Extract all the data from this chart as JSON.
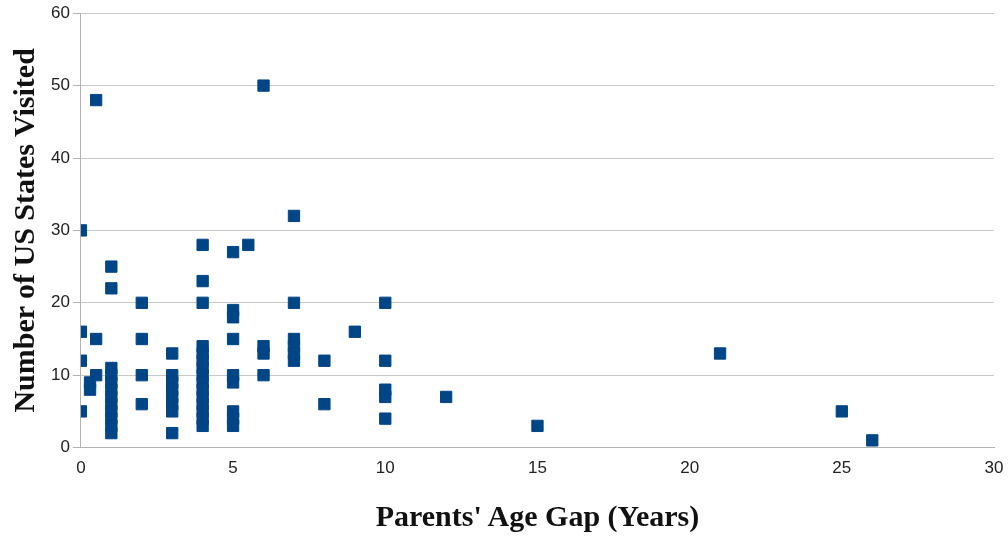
{
  "chart_data": {
    "type": "scatter",
    "xlabel": "Parents' Age Gap (Years)",
    "ylabel": "Number of US States Visited",
    "x": [
      0,
      0,
      0,
      0,
      0.5,
      0.5,
      0.5,
      0.3,
      0.3,
      1,
      1,
      1,
      1,
      1,
      1,
      1,
      1,
      1,
      1,
      1,
      1,
      2,
      2,
      2,
      2,
      3,
      3,
      3,
      3,
      3,
      3,
      3,
      3,
      4,
      4,
      4,
      4,
      4,
      4,
      4,
      4,
      4,
      4,
      4,
      4,
      4,
      4,
      4,
      5,
      5,
      5,
      5,
      5,
      5,
      5,
      5,
      5,
      5.5,
      6,
      6,
      6,
      6,
      7,
      7,
      7,
      7,
      7,
      7,
      8,
      8,
      9,
      10,
      10,
      10,
      10,
      10,
      12,
      15,
      21,
      25,
      26
    ],
    "values": [
      30,
      16,
      12,
      5,
      48,
      15,
      10,
      8,
      9,
      25,
      22,
      11,
      10,
      9,
      8,
      7,
      6,
      5,
      4,
      3,
      2,
      20,
      15,
      10,
      6,
      13,
      10,
      9,
      8,
      7,
      6,
      5,
      2,
      28,
      23,
      20,
      14,
      13,
      12,
      11,
      10,
      9,
      8,
      7,
      6,
      5,
      4,
      3,
      27,
      19,
      18,
      15,
      10,
      9,
      5,
      4,
      3,
      28,
      50,
      14,
      13,
      10,
      32,
      20,
      15,
      14,
      13,
      12,
      12,
      6,
      16,
      20,
      12,
      8,
      7,
      4,
      7,
      3,
      13,
      5,
      1
    ],
    "color": "#004586",
    "marker": "square",
    "xlim": [
      0,
      30
    ],
    "xticks": [
      0,
      5,
      10,
      15,
      20,
      25,
      30
    ],
    "ylim": [
      0,
      60
    ],
    "yticks": [
      0,
      10,
      20,
      30,
      40,
      50,
      60
    ],
    "grid": "y",
    "legend": false
  }
}
